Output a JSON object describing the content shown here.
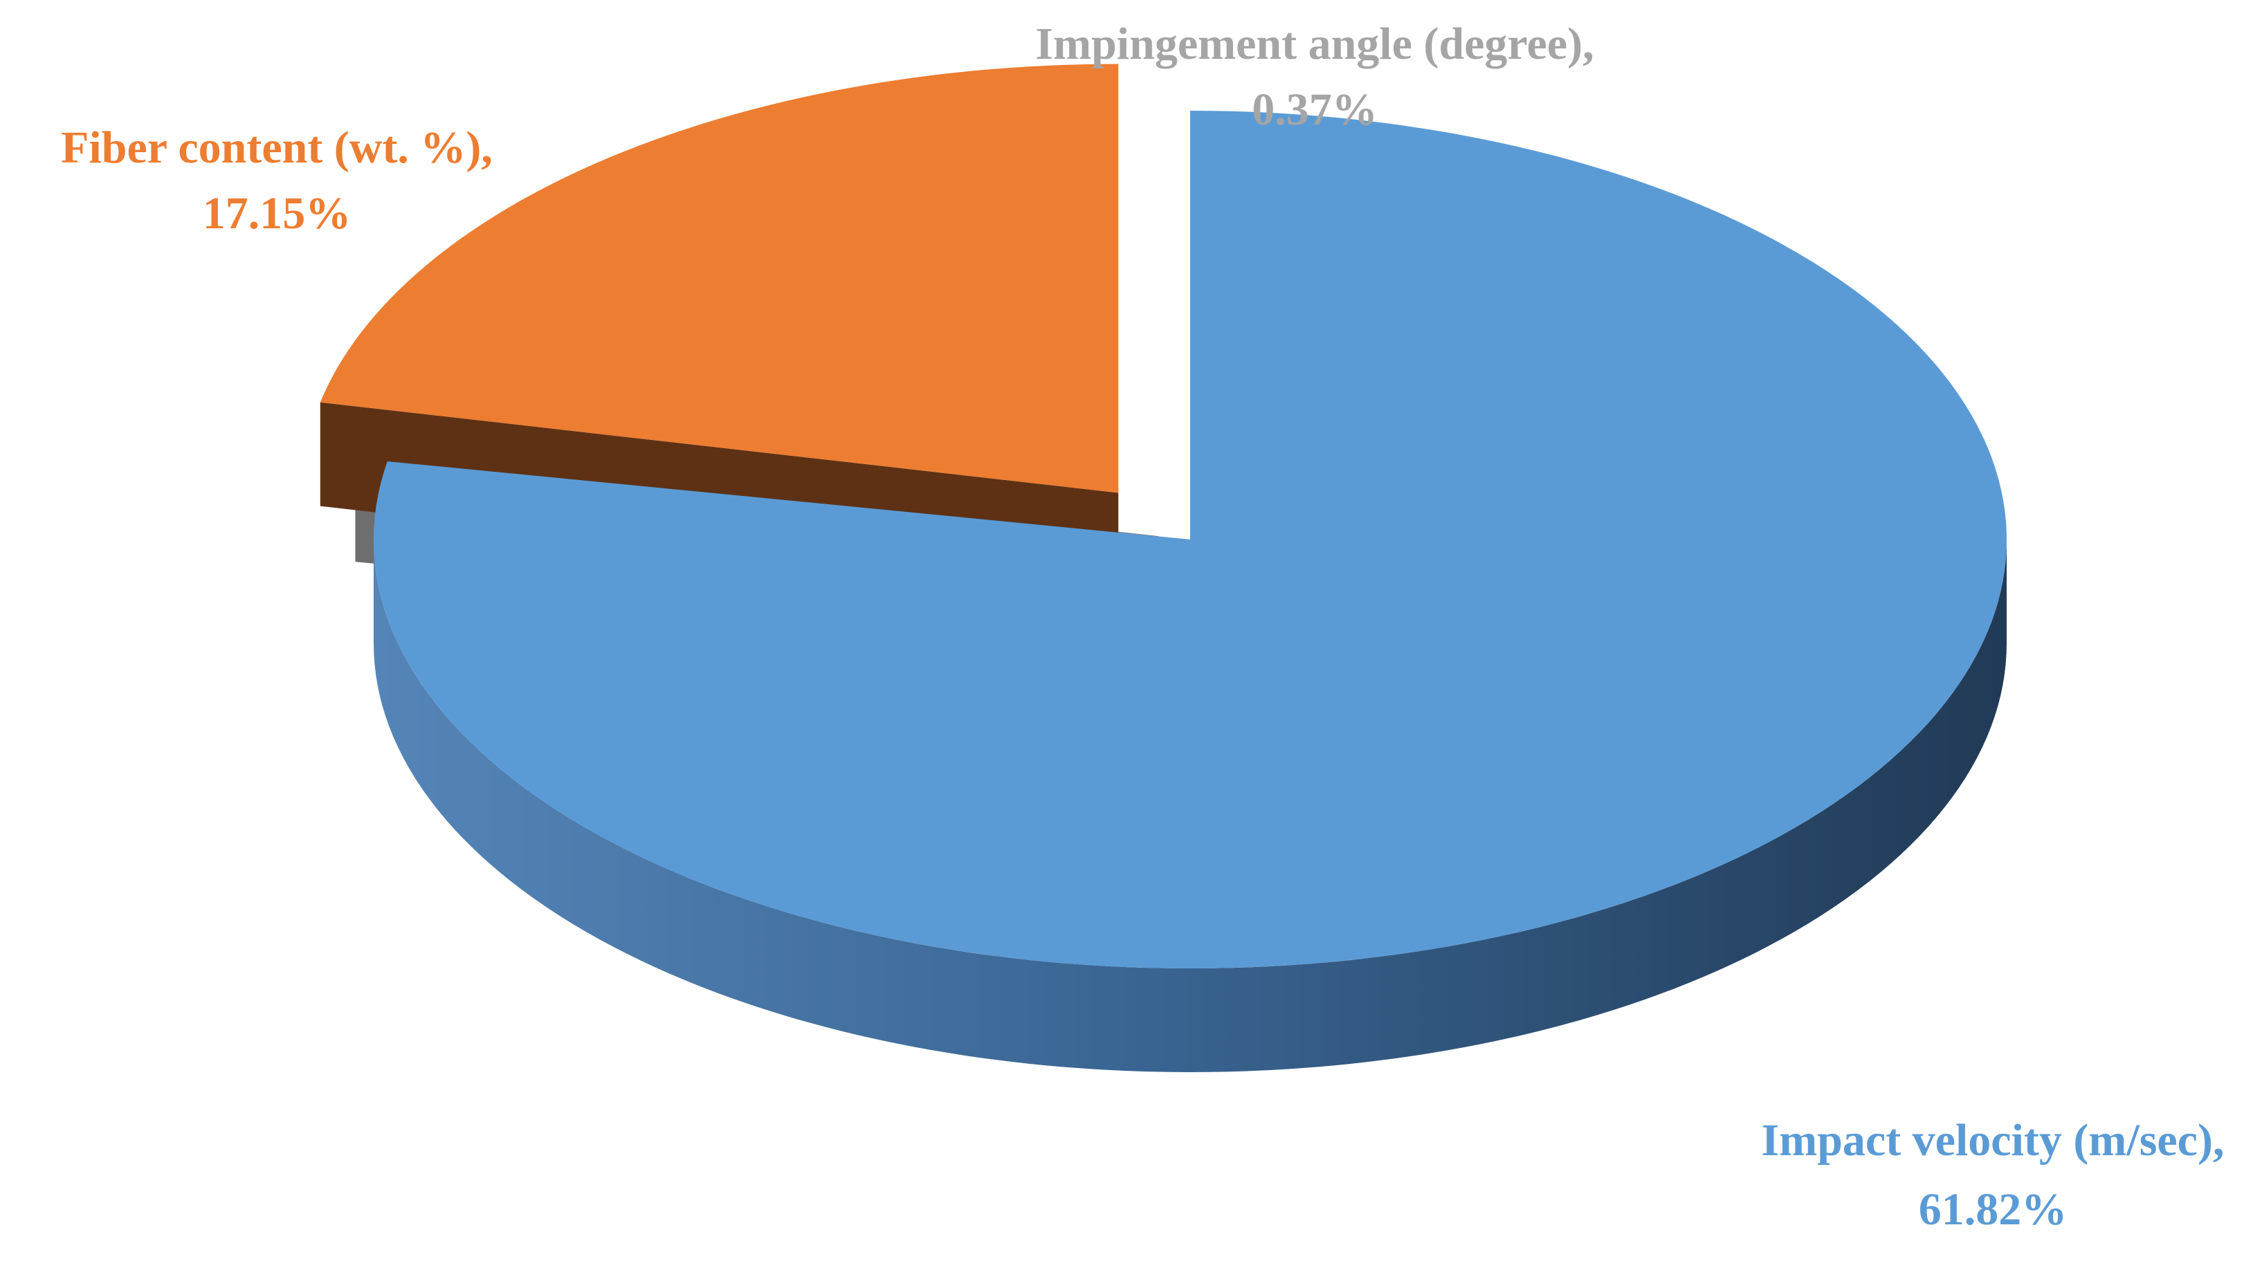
{
  "chart_data": {
    "type": "pie",
    "title": "",
    "three_d": true,
    "exploded": true,
    "slices": [
      {
        "label": "Impact velocity (m/sec),",
        "value": 61.82,
        "value_label": "61.82%",
        "color": "#5B9BD5",
        "side_color": "#2F5278"
      },
      {
        "label": "Impingement angle (degree),",
        "value": 0.37,
        "value_label": "0.37%",
        "color": "#A5A5A5",
        "side_color": "#6E6E6E"
      },
      {
        "label": "Fiber content (wt. %),",
        "value": 17.15,
        "value_label": "17.15%",
        "color": "#ED7D31",
        "side_color": "#5E3114"
      }
    ],
    "legend": "none"
  }
}
